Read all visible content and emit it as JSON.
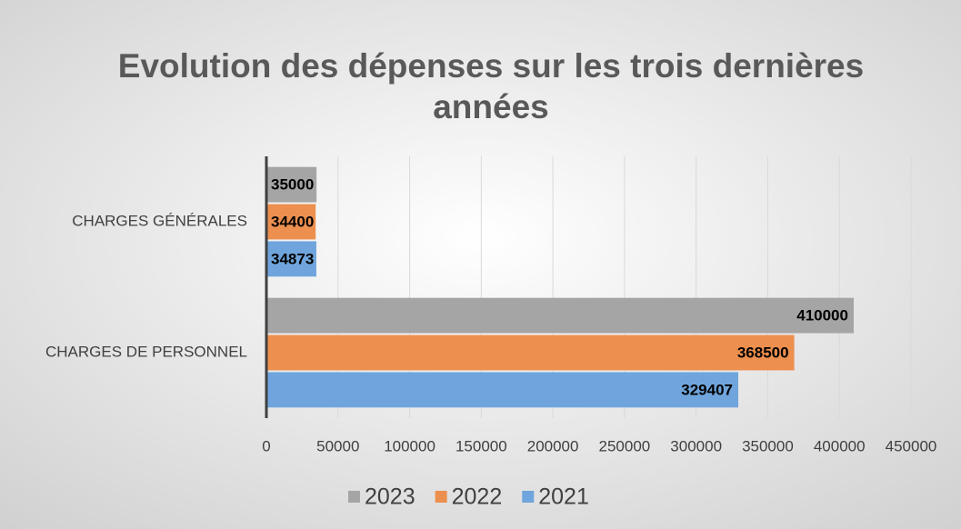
{
  "chart_data": {
    "type": "barh",
    "title": "Evolution des dépenses sur les trois dernières années",
    "categories": [
      "CHARGES GÉNÉRALES",
      "CHARGES DE PERSONNEL"
    ],
    "series": [
      {
        "name": "2023",
        "color": "#a5a5a5",
        "values": [
          35000,
          410000
        ]
      },
      {
        "name": "2022",
        "color": "#ed8f4e",
        "values": [
          34400,
          368500
        ]
      },
      {
        "name": "2021",
        "color": "#6fa5dc",
        "values": [
          34873,
          329407
        ]
      }
    ],
    "xlim": [
      0,
      450000
    ],
    "xticks": [
      0,
      50000,
      100000,
      150000,
      200000,
      250000,
      300000,
      350000,
      400000,
      450000
    ],
    "grid": true,
    "legend": "bottom"
  }
}
